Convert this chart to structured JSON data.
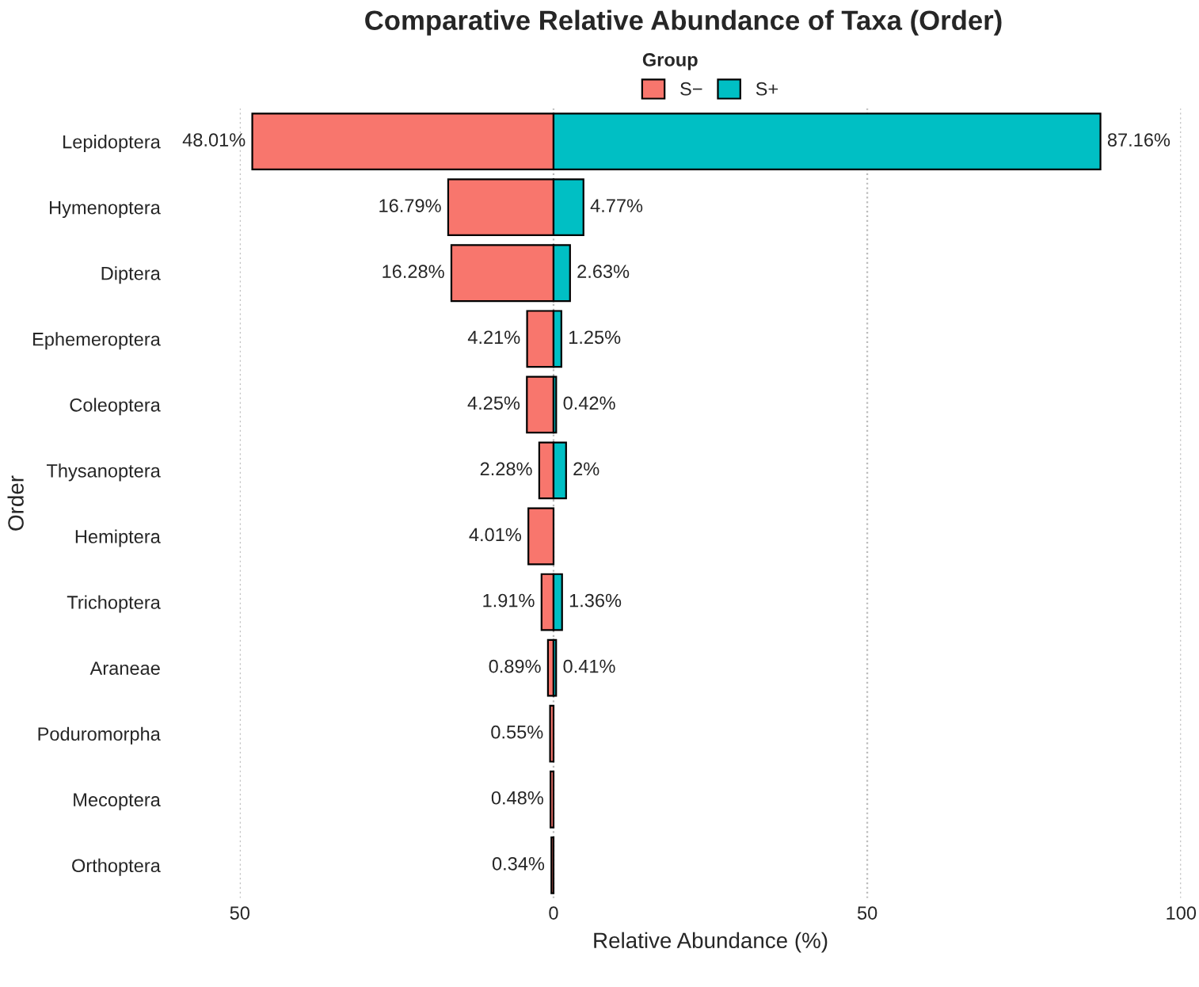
{
  "chart_data": {
    "type": "bar",
    "orientation": "horizontal",
    "title": "Comparative Relative Abundance of Taxa (Order)",
    "xlabel": "Relative Abundance (%)",
    "ylabel": "Order",
    "legend_title": "Group",
    "legend": "top",
    "grid": "x",
    "categories": [
      "Lepidoptera",
      "Hymenoptera",
      "Diptera",
      "Ephemeroptera",
      "Coleoptera",
      "Thysanoptera",
      "Hemiptera",
      "Trichoptera",
      "Araneae",
      "Poduromorpha",
      "Mecoptera",
      "Orthoptera"
    ],
    "series": [
      {
        "name": "S−",
        "color": "#f8766d",
        "base": [
          -48.01,
          -16.79,
          -16.28,
          -4.21,
          -4.25,
          -2.28,
          -4.01,
          -1.91,
          -0.89,
          -0.55,
          -0.48,
          -0.34
        ],
        "values": [
          48.01,
          16.79,
          16.28,
          4.21,
          4.25,
          2.28,
          4.01,
          1.91,
          0.89,
          0.55,
          0.48,
          0.34
        ],
        "value_labels": [
          "48.01%",
          "16.79%",
          "16.28%",
          "4.21%",
          "4.25%",
          "2.28%",
          "4.01%",
          "1.91%",
          "0.89%",
          "0.55%",
          "0.48%",
          "0.34%"
        ]
      },
      {
        "name": "S+",
        "color": "#00bfc4",
        "values": [
          87.16,
          4.77,
          2.63,
          1.25,
          0.42,
          2,
          null,
          1.36,
          0.41,
          null,
          null,
          null
        ],
        "value_labels": [
          "87.16%",
          "4.77%",
          "2.63%",
          "1.25%",
          "0.42%",
          "2%",
          null,
          "1.36%",
          "0.41%",
          null,
          null,
          null
        ]
      }
    ],
    "xlim": [
      -50,
      100
    ],
    "xticks": [
      {
        "value": -50,
        "label": "50"
      },
      0,
      50,
      100
    ]
  }
}
